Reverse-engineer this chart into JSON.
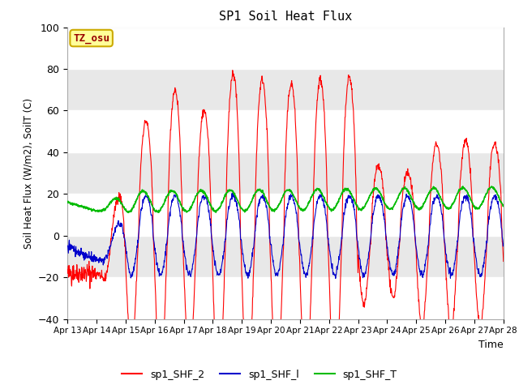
{
  "title": "SP1 Soil Heat Flux",
  "ylabel": "Soil Heat Flux (W/m2), SoilT (C)",
  "xlabel": "Time",
  "ylim": [
    -40,
    100
  ],
  "fig_bg": "#ffffff",
  "plot_bg": "#e8e8e8",
  "grid_color": "#ffffff",
  "line_colors": {
    "SHF2": "#ff0000",
    "SHF1": "#0000cc",
    "SHFT": "#00bb00"
  },
  "legend_labels": [
    "sp1_SHF_2",
    "sp1_SHF_l",
    "sp1_SHF_T"
  ],
  "annotation_text": "TZ_osu",
  "annotation_bg": "#ffff99",
  "annotation_border": "#ccaa00",
  "x_tick_labels": [
    "Apr 13",
    "Apr 14",
    "Apr 15",
    "Apr 16",
    "Apr 17",
    "Apr 18",
    "Apr 19",
    "Apr 20",
    "Apr 21",
    "Apr 22",
    "Apr 23",
    "Apr 24",
    "Apr 25",
    "Apr 26",
    "Apr 27",
    "Apr 28"
  ],
  "yticks": [
    -40,
    -20,
    0,
    20,
    40,
    60,
    80,
    100
  ],
  "days": 15,
  "pts_per_day": 96
}
